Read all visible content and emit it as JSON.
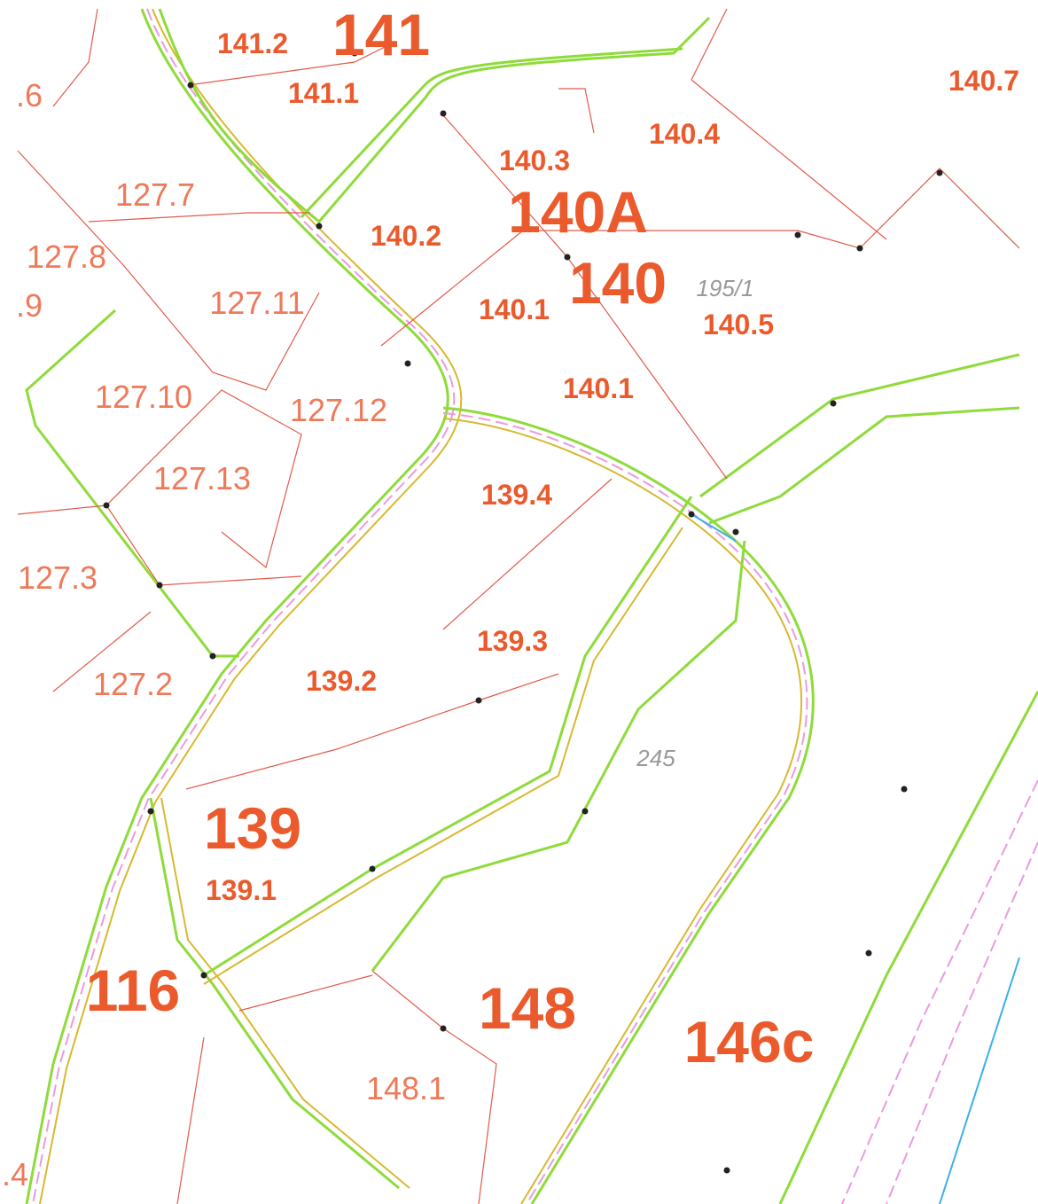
{
  "map": {
    "labels": [
      "141",
      "141.2",
      "141.1",
      "140.3",
      "140.4",
      "140.7",
      "140A",
      "140",
      "140.2",
      "140.1",
      "140.5",
      "140.1",
      "195/1",
      "127.7",
      "127.8",
      "127.11",
      "127.10",
      "127.12",
      "127.13",
      "127.3",
      "127.2",
      ".6",
      ".9",
      ".4",
      "139.4",
      "139.3",
      "139.2",
      "139",
      "139.1",
      "245",
      "116",
      "148",
      "148.1",
      "146c"
    ]
  }
}
